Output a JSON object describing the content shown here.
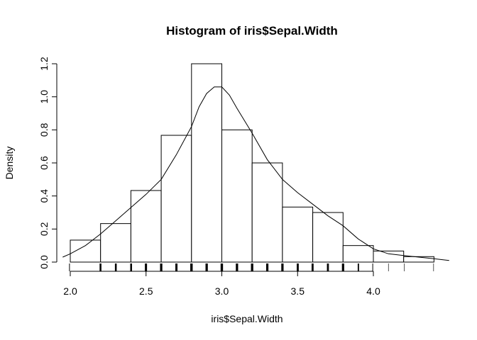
{
  "chart_data": {
    "type": "bar",
    "title": "Histogram of iris$Sepal.Width",
    "xlabel": "iris$Sepal.Width",
    "ylabel": "Density",
    "xlim": [
      2.0,
      4.4
    ],
    "ylim": [
      0,
      1.2
    ],
    "x_ticks": [
      2.0,
      2.5,
      3.0,
      3.5,
      4.0
    ],
    "x_tick_labels": [
      "2.0",
      "2.5",
      "3.0",
      "3.5",
      "4.0"
    ],
    "y_ticks": [
      0.0,
      0.2,
      0.4,
      0.6,
      0.8,
      1.0,
      1.2
    ],
    "y_tick_labels": [
      "0.0",
      "0.2",
      "0.4",
      "0.6",
      "0.8",
      "1.0",
      "1.2"
    ],
    "grid": false,
    "bins": [
      {
        "x0": 2.0,
        "x1": 2.2,
        "density": 0.133
      },
      {
        "x0": 2.2,
        "x1": 2.4,
        "density": 0.233
      },
      {
        "x0": 2.4,
        "x1": 2.6,
        "density": 0.433
      },
      {
        "x0": 2.6,
        "x1": 2.8,
        "density": 0.767
      },
      {
        "x0": 2.8,
        "x1": 3.0,
        "density": 1.2
      },
      {
        "x0": 3.0,
        "x1": 3.2,
        "density": 0.8
      },
      {
        "x0": 3.2,
        "x1": 3.4,
        "density": 0.6
      },
      {
        "x0": 3.4,
        "x1": 3.6,
        "density": 0.333
      },
      {
        "x0": 3.6,
        "x1": 3.8,
        "density": 0.3
      },
      {
        "x0": 3.8,
        "x1": 4.0,
        "density": 0.1
      },
      {
        "x0": 4.0,
        "x1": 4.2,
        "density": 0.067
      },
      {
        "x0": 4.2,
        "x1": 4.4,
        "density": 0.033
      }
    ],
    "density_curve": {
      "x": [
        1.95,
        2.0,
        2.1,
        2.2,
        2.3,
        2.4,
        2.5,
        2.6,
        2.7,
        2.8,
        2.85,
        2.9,
        2.95,
        3.0,
        3.05,
        3.1,
        3.2,
        3.3,
        3.4,
        3.5,
        3.6,
        3.7,
        3.8,
        3.9,
        4.0,
        4.1,
        4.2,
        4.3,
        4.4,
        4.5
      ],
      "y": [
        0.03,
        0.05,
        0.1,
        0.17,
        0.25,
        0.33,
        0.41,
        0.5,
        0.65,
        0.82,
        0.94,
        1.02,
        1.06,
        1.06,
        1.01,
        0.93,
        0.78,
        0.62,
        0.5,
        0.42,
        0.35,
        0.28,
        0.22,
        0.14,
        0.08,
        0.05,
        0.04,
        0.03,
        0.02,
        0.01
      ]
    },
    "rug": [
      2.0,
      2.2,
      2.2,
      2.2,
      2.3,
      2.3,
      2.3,
      2.3,
      2.4,
      2.4,
      2.4,
      2.5,
      2.5,
      2.5,
      2.5,
      2.5,
      2.5,
      2.5,
      2.5,
      2.6,
      2.6,
      2.6,
      2.6,
      2.6,
      2.7,
      2.7,
      2.7,
      2.7,
      2.7,
      2.7,
      2.7,
      2.7,
      2.7,
      2.8,
      2.8,
      2.8,
      2.8,
      2.8,
      2.8,
      2.8,
      2.8,
      2.8,
      2.8,
      2.8,
      2.8,
      2.8,
      2.8,
      2.9,
      2.9,
      2.9,
      2.9,
      2.9,
      2.9,
      2.9,
      2.9,
      2.9,
      2.9,
      3.0,
      3.0,
      3.0,
      3.0,
      3.0,
      3.0,
      3.0,
      3.0,
      3.0,
      3.0,
      3.0,
      3.0,
      3.0,
      3.0,
      3.0,
      3.0,
      3.0,
      3.0,
      3.0,
      3.0,
      3.0,
      3.0,
      3.0,
      3.0,
      3.0,
      3.0,
      3.1,
      3.1,
      3.1,
      3.1,
      3.1,
      3.1,
      3.1,
      3.1,
      3.1,
      3.1,
      3.1,
      3.2,
      3.2,
      3.2,
      3.2,
      3.2,
      3.2,
      3.2,
      3.2,
      3.2,
      3.2,
      3.2,
      3.2,
      3.2,
      3.3,
      3.3,
      3.3,
      3.3,
      3.3,
      3.3,
      3.4,
      3.4,
      3.4,
      3.4,
      3.4,
      3.4,
      3.4,
      3.4,
      3.4,
      3.4,
      3.4,
      3.4,
      3.5,
      3.5,
      3.5,
      3.5,
      3.5,
      3.5,
      3.6,
      3.6,
      3.6,
      3.6,
      3.7,
      3.7,
      3.7,
      3.8,
      3.8,
      3.8,
      3.8,
      3.8,
      3.8,
      3.9,
      3.9,
      4.0,
      4.1,
      4.2,
      4.4
    ]
  }
}
